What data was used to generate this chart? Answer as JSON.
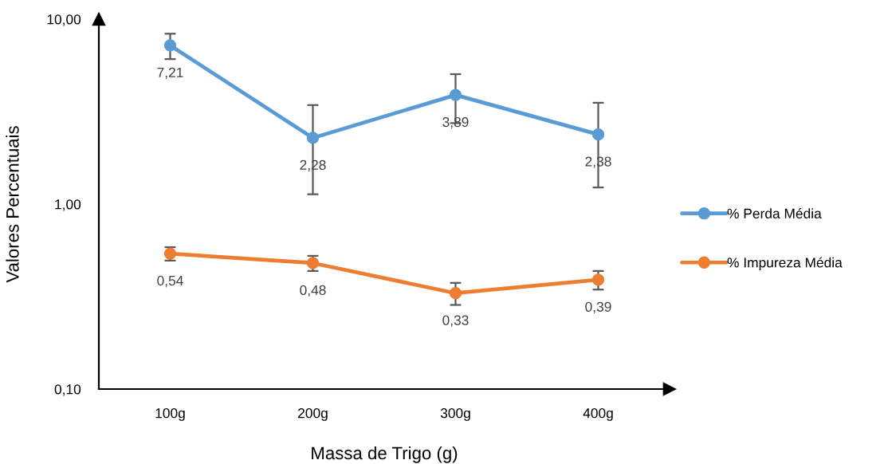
{
  "chart_data": {
    "type": "line",
    "xlabel": "Massa de Trigo (g)",
    "ylabel": "Valores Percentuais",
    "categories": [
      "100g",
      "200g",
      "300g",
      "400g"
    ],
    "series": [
      {
        "name": "% Perda Média",
        "color": "#5b9bd5",
        "values": [
          7.21,
          2.28,
          3.89,
          2.38
        ],
        "errors": [
          1.13,
          1.15,
          1.15,
          1.15
        ],
        "value_labels": [
          "7,21",
          "2,28",
          "3,89",
          "2,38"
        ]
      },
      {
        "name": "% Impureza Média",
        "color": "#ed7d31",
        "values": [
          0.54,
          0.48,
          0.33,
          0.39
        ],
        "errors": [
          0.045,
          0.045,
          0.045,
          0.045
        ],
        "value_labels": [
          "0,54",
          "0,48",
          "0,33",
          "0,39"
        ]
      }
    ],
    "ylim": [
      0.1,
      10
    ],
    "yticks": [
      {
        "value": 0.1,
        "label": "0,10"
      },
      {
        "value": 1,
        "label": "1,00"
      },
      {
        "value": 10,
        "label": "10,00"
      }
    ],
    "log": true,
    "legend": "right",
    "marker": "circle",
    "line_style": "solid",
    "grid": false
  }
}
